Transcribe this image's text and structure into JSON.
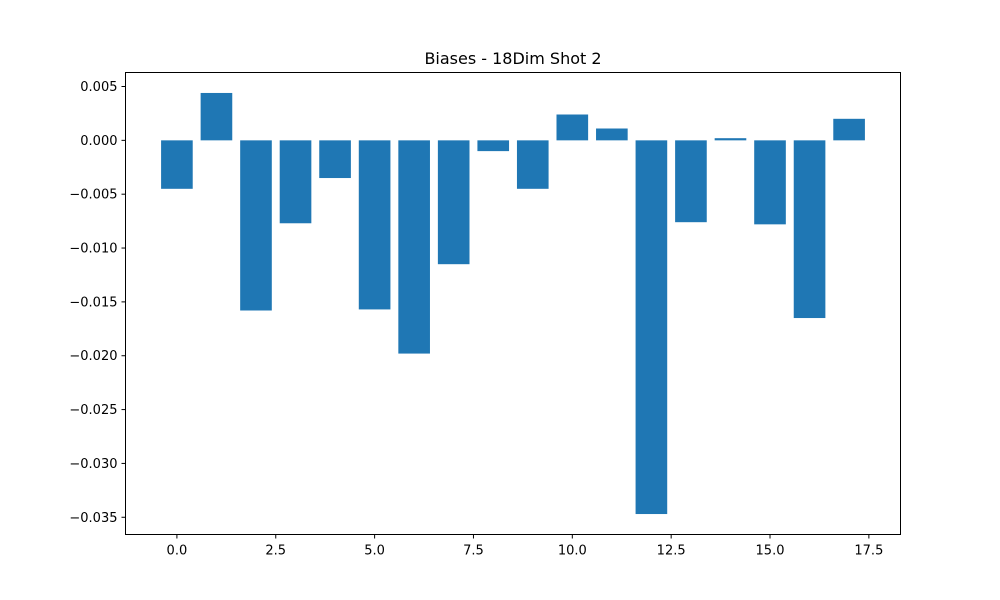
{
  "chart_data": {
    "type": "bar",
    "title": "Biases - 18Dim Shot 2",
    "xlabel": "",
    "ylabel": "",
    "x": [
      0,
      1,
      2,
      3,
      4,
      5,
      6,
      7,
      8,
      9,
      10,
      11,
      12,
      13,
      14,
      15,
      16,
      17
    ],
    "values": [
      -0.0045,
      0.0044,
      -0.0158,
      -0.0077,
      -0.0035,
      -0.0157,
      -0.0198,
      -0.0115,
      -0.001,
      -0.0045,
      0.0024,
      0.0011,
      -0.0347,
      -0.0076,
      0.0002,
      -0.0078,
      -0.0165,
      0.002
    ],
    "xlim": [
      -1.3,
      18.3
    ],
    "ylim": [
      -0.0366,
      0.0063
    ],
    "xticks": [
      0.0,
      2.5,
      5.0,
      7.5,
      10.0,
      12.5,
      15.0,
      17.5
    ],
    "xtick_labels": [
      "0.0",
      "2.5",
      "5.0",
      "7.5",
      "10.0",
      "12.5",
      "15.0",
      "17.5"
    ],
    "yticks": [
      0.005,
      0.0,
      -0.005,
      -0.01,
      -0.015,
      -0.02,
      -0.025,
      -0.03,
      -0.035
    ],
    "ytick_labels": [
      "0.005",
      "0.000",
      "−0.005",
      "−0.010",
      "−0.015",
      "−0.020",
      "−0.025",
      "−0.030",
      "−0.035"
    ],
    "bar_color": "#1f77b4",
    "grid": false,
    "legend": "none"
  }
}
